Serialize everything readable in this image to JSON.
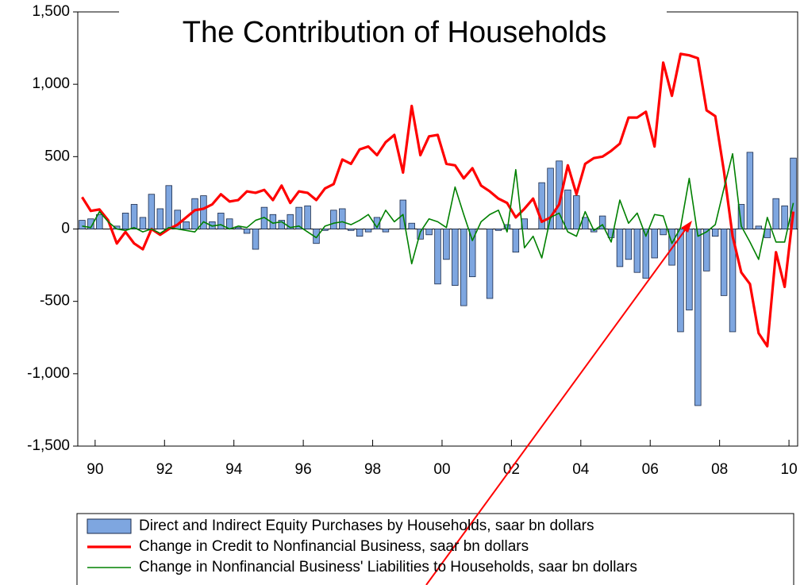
{
  "chart_data": {
    "type": "bar",
    "title": "The Contribution of Households",
    "x": [
      1990,
      1990.25,
      1990.5,
      1990.75,
      1991,
      1991.25,
      1991.5,
      1991.75,
      1992,
      1992.25,
      1992.5,
      1992.75,
      1993,
      1993.25,
      1993.5,
      1993.75,
      1994,
      1994.25,
      1994.5,
      1994.75,
      1995,
      1995.25,
      1995.5,
      1995.75,
      1996,
      1996.25,
      1996.5,
      1996.75,
      1997,
      1997.25,
      1997.5,
      1997.75,
      1998,
      1998.25,
      1998.5,
      1998.75,
      1999,
      1999.25,
      1999.5,
      1999.75,
      2000,
      2000.25,
      2000.5,
      2000.75,
      2001,
      2001.25,
      2001.5,
      2001.75,
      2002,
      2002.25,
      2002.5,
      2002.75,
      2003,
      2003.25,
      2003.5,
      2003.75,
      2004,
      2004.25,
      2004.5,
      2004.75,
      2005,
      2005.25,
      2005.5,
      2005.75,
      2006,
      2006.25,
      2006.5,
      2006.75,
      2007,
      2007.25,
      2007.5,
      2007.75,
      2008,
      2008.25,
      2008.5,
      2008.75,
      2009,
      2009.25,
      2009.5,
      2009.75,
      2010,
      2010.25,
      2010.5
    ],
    "xlim": [
      1990,
      2010.75
    ],
    "xticks": [
      {
        "value": 1990.5,
        "label": "90"
      },
      {
        "value": 1992.5,
        "label": "92"
      },
      {
        "value": 1994.5,
        "label": "94"
      },
      {
        "value": 1996.5,
        "label": "96"
      },
      {
        "value": 1998.5,
        "label": "98"
      },
      {
        "value": 2000.5,
        "label": "00"
      },
      {
        "value": 2002.5,
        "label": "02"
      },
      {
        "value": 2004.5,
        "label": "04"
      },
      {
        "value": 2006.5,
        "label": "06"
      },
      {
        "value": 2008.5,
        "label": "08"
      },
      {
        "value": 2010.5,
        "label": "10"
      }
    ],
    "ylim": [
      -1500,
      1500
    ],
    "yticks": [
      {
        "value": -1500,
        "label": "-1,500"
      },
      {
        "value": -1000,
        "label": "-1,000"
      },
      -500,
      0,
      500,
      {
        "value": 1000,
        "label": "1,000"
      },
      {
        "value": 1500,
        "label": "1,500"
      }
    ],
    "series": [
      {
        "name": "Direct and Indirect Equity Purchases by Households, saar bn dollars",
        "type": "bar",
        "color": "#7ea6e0",
        "values": [
          60,
          70,
          100,
          0,
          20,
          110,
          170,
          80,
          240,
          140,
          300,
          130,
          50,
          210,
          230,
          50,
          110,
          70,
          10,
          -30,
          -140,
          150,
          100,
          60,
          100,
          150,
          160,
          -100,
          -10,
          130,
          140,
          -10,
          -50,
          -20,
          80,
          -20,
          0,
          200,
          40,
          -70,
          -40,
          -380,
          -210,
          -390,
          -530,
          -330,
          0,
          -480,
          -10,
          30,
          -160,
          70,
          0,
          320,
          420,
          470,
          270,
          230,
          80,
          -20,
          90,
          -60,
          -260,
          -210,
          -300,
          -340,
          -200,
          -40,
          -250,
          -710,
          -560,
          -1220,
          -290,
          -50,
          -460,
          -710,
          170,
          530,
          20,
          -60,
          210,
          160,
          490
        ]
      },
      {
        "name": "Change in Credit to Nonfinancial Business, saar bn dollars",
        "type": "line",
        "color": "#ff0000",
        "values": [
          220,
          125,
          135,
          60,
          -100,
          -20,
          -100,
          -140,
          0,
          -40,
          0,
          30,
          80,
          130,
          140,
          170,
          240,
          190,
          200,
          260,
          250,
          270,
          200,
          300,
          180,
          260,
          250,
          200,
          280,
          310,
          480,
          450,
          550,
          570,
          510,
          600,
          650,
          390,
          850,
          510,
          640,
          650,
          450,
          440,
          350,
          420,
          300,
          260,
          210,
          180,
          80,
          140,
          210,
          50,
          80,
          170,
          440,
          240,
          450,
          490,
          500,
          540,
          590,
          770,
          770,
          810,
          570,
          1150,
          920,
          1210,
          1200,
          1180,
          820,
          780,
          400,
          -50,
          -300,
          -380,
          -720,
          -810,
          -160,
          -400,
          120
        ]
      },
      {
        "name": "Change in Nonfinancial Business' Liabilities to Households, saar bn dollars",
        "type": "line",
        "color": "#008000",
        "values": [
          20,
          10,
          120,
          50,
          0,
          -10,
          10,
          -20,
          0,
          -30,
          10,
          0,
          -10,
          -20,
          50,
          20,
          30,
          0,
          20,
          10,
          60,
          80,
          40,
          50,
          10,
          20,
          -20,
          -60,
          20,
          40,
          50,
          30,
          60,
          100,
          10,
          130,
          50,
          100,
          -240,
          -20,
          70,
          50,
          10,
          290,
          100,
          -80,
          50,
          100,
          130,
          -20,
          410,
          -130,
          -50,
          -200,
          80,
          110,
          -20,
          -50,
          120,
          -10,
          30,
          -90,
          200,
          40,
          110,
          -50,
          100,
          90,
          -100,
          10,
          350,
          -50,
          -20,
          30,
          280,
          520,
          20,
          -90,
          -210,
          80,
          -90,
          -90,
          180
        ]
      }
    ]
  }
}
